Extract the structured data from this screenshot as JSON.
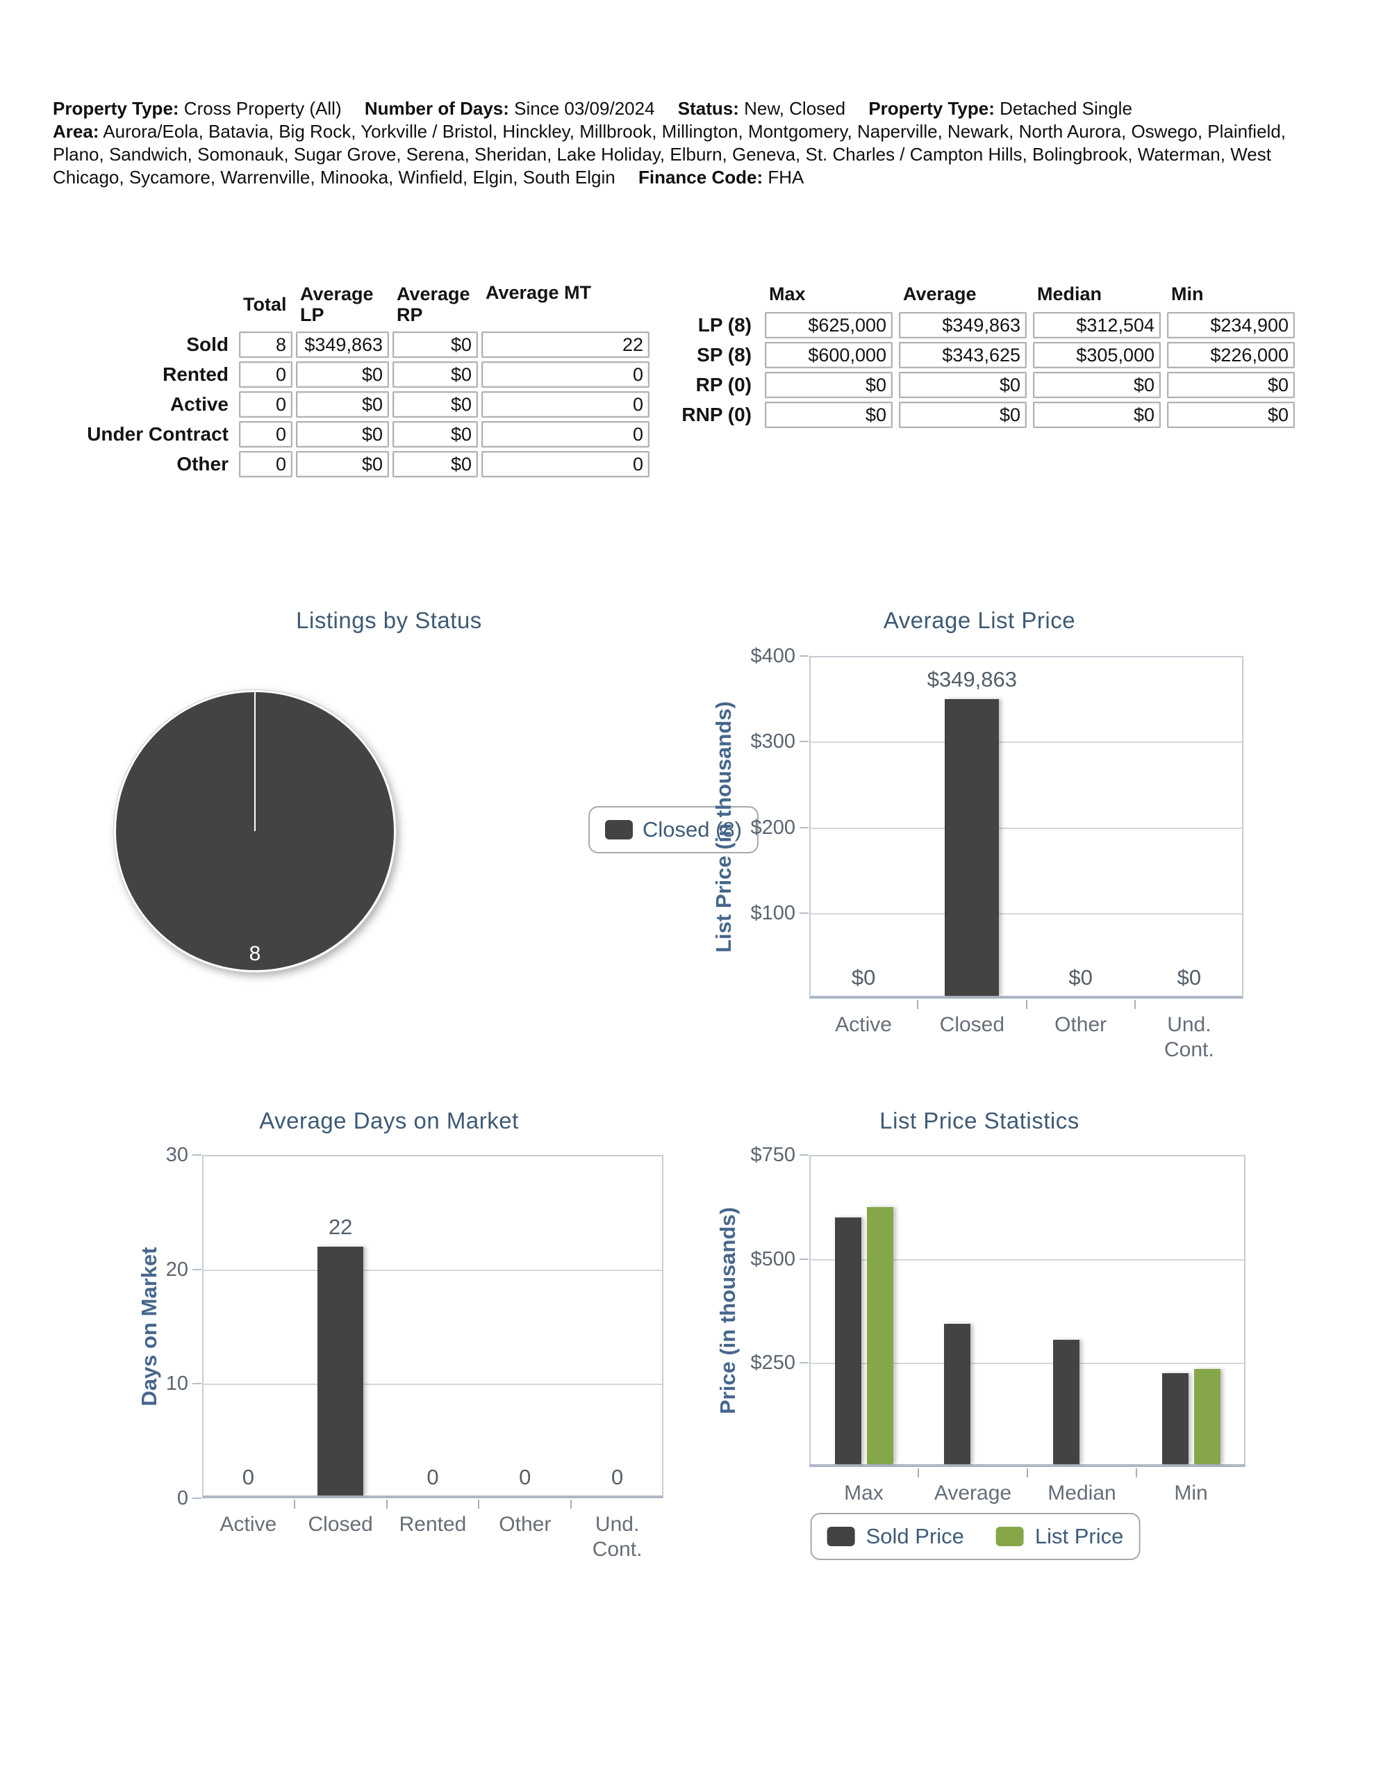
{
  "header": {
    "segments": [
      {
        "label": "Property Type:",
        "value": "Cross Property (All)"
      },
      {
        "label": "Number of Days:",
        "value": "Since 03/09/2024"
      },
      {
        "label": "Status:",
        "value": "New, Closed"
      },
      {
        "label": "Property Type:",
        "value": "Detached Single"
      },
      {
        "label": "Area:",
        "value": "Aurora/Eola, Batavia, Big Rock, Yorkville / Bristol, Hinckley, Millbrook, Millington, Montgomery, Naperville, Newark, North Aurora, Oswego, Plainfield, Plano, Sandwich, Somonauk, Sugar Grove, Serena, Sheridan, Lake Holiday, Elburn, Geneva, St. Charles / Campton Hills, Bolingbrook, Waterman, West Chicago, Sycamore, Warrenville, Minooka, Winfield, Elgin, South Elgin"
      },
      {
        "label": "Finance Code:",
        "value": "FHA"
      }
    ]
  },
  "status_table": {
    "columns": [
      "Total",
      "Average LP",
      "Average RP",
      "Average MT"
    ],
    "rows": [
      {
        "label": "Sold",
        "total": "8",
        "avg_lp": "$349,863",
        "avg_rp": "$0",
        "avg_mt": "22"
      },
      {
        "label": "Rented",
        "total": "0",
        "avg_lp": "$0",
        "avg_rp": "$0",
        "avg_mt": "0"
      },
      {
        "label": "Active",
        "total": "0",
        "avg_lp": "$0",
        "avg_rp": "$0",
        "avg_mt": "0"
      },
      {
        "label": "Under Contract",
        "total": "0",
        "avg_lp": "$0",
        "avg_rp": "$0",
        "avg_mt": "0"
      },
      {
        "label": "Other",
        "total": "0",
        "avg_lp": "$0",
        "avg_rp": "$0",
        "avg_mt": "0"
      }
    ]
  },
  "price_table": {
    "columns": [
      "Max",
      "Average",
      "Median",
      "Min"
    ],
    "rows": [
      {
        "label": "LP (8)",
        "max": "$625,000",
        "average": "$349,863",
        "median": "$312,504",
        "min": "$234,900"
      },
      {
        "label": "SP (8)",
        "max": "$600,000",
        "average": "$343,625",
        "median": "$305,000",
        "min": "$226,000"
      },
      {
        "label": "RP (0)",
        "max": "$0",
        "average": "$0",
        "median": "$0",
        "min": "$0"
      },
      {
        "label": "RNP (0)",
        "max": "$0",
        "average": "$0",
        "median": "$0",
        "min": "$0"
      }
    ]
  },
  "colors": {
    "bar_dark": "#434343",
    "bar_green": "#85a74a",
    "title_blue": "#3e5a74",
    "axis_label_blue": "#46678c",
    "tick_gray": "#5b6470",
    "legend_text_blue": "#3e5c78"
  },
  "chart_data": [
    {
      "id": "listings-by-status",
      "type": "pie",
      "title": "Listings by Status",
      "slices": [
        {
          "label": "Closed",
          "value": 8,
          "color": "#434343"
        }
      ],
      "count_label": "8",
      "legend": [
        {
          "label": "Closed (8)",
          "color": "#434343"
        }
      ],
      "legend_position": "right"
    },
    {
      "id": "average-list-price",
      "type": "bar",
      "title": "Average List Price",
      "ylabel": "List Price (in thousands)",
      "ylim": [
        0,
        400
      ],
      "grid": true,
      "yticks": [
        {
          "pos": 400,
          "label": "$400"
        },
        {
          "pos": 300,
          "label": "$300"
        },
        {
          "pos": 200,
          "label": "$200"
        },
        {
          "pos": 100,
          "label": "$100"
        }
      ],
      "categories": [
        "Active",
        "Closed",
        "Other",
        "Und.\nCont."
      ],
      "values": [
        0,
        349.863,
        0,
        0
      ],
      "bar_labels": [
        "$0",
        "$349,863",
        "$0",
        "$0"
      ],
      "bar_color": "#434343"
    },
    {
      "id": "average-days-on-market",
      "type": "bar",
      "title": "Average Days on Market",
      "ylabel": "Days on Market",
      "ylim": [
        0,
        30
      ],
      "grid": true,
      "yticks": [
        {
          "pos": 30,
          "label": "30"
        },
        {
          "pos": 20,
          "label": "20"
        },
        {
          "pos": 10,
          "label": "10"
        },
        {
          "pos": 0,
          "label": "0"
        }
      ],
      "categories": [
        "Active",
        "Closed",
        "Rented",
        "Other",
        "Und.\nCont."
      ],
      "values": [
        0,
        22,
        0,
        0,
        0
      ],
      "bar_labels": [
        "0",
        "22",
        "0",
        "0",
        "0"
      ],
      "bar_color": "#434343"
    },
    {
      "id": "list-price-statistics",
      "type": "grouped-bar",
      "title": "List Price Statistics",
      "ylabel": "Price (in thousands)",
      "ylim": [
        0,
        750
      ],
      "grid": true,
      "yticks": [
        {
          "pos": 750,
          "label": "$750"
        },
        {
          "pos": 500,
          "label": "$500"
        },
        {
          "pos": 250,
          "label": "$250"
        }
      ],
      "categories": [
        "Max",
        "Average",
        "Median",
        "Min"
      ],
      "series": [
        {
          "name": "Sold Price",
          "color": "#434343",
          "values": [
            600,
            343.625,
            305,
            226
          ]
        },
        {
          "name": "List Price",
          "color": "#85a74a",
          "values": [
            625,
            null,
            null,
            234.9
          ]
        }
      ],
      "legend": [
        {
          "label": "Sold Price",
          "color": "#434343"
        },
        {
          "label": "List Price",
          "color": "#85a74a"
        }
      ],
      "legend_position": "bottom"
    }
  ]
}
